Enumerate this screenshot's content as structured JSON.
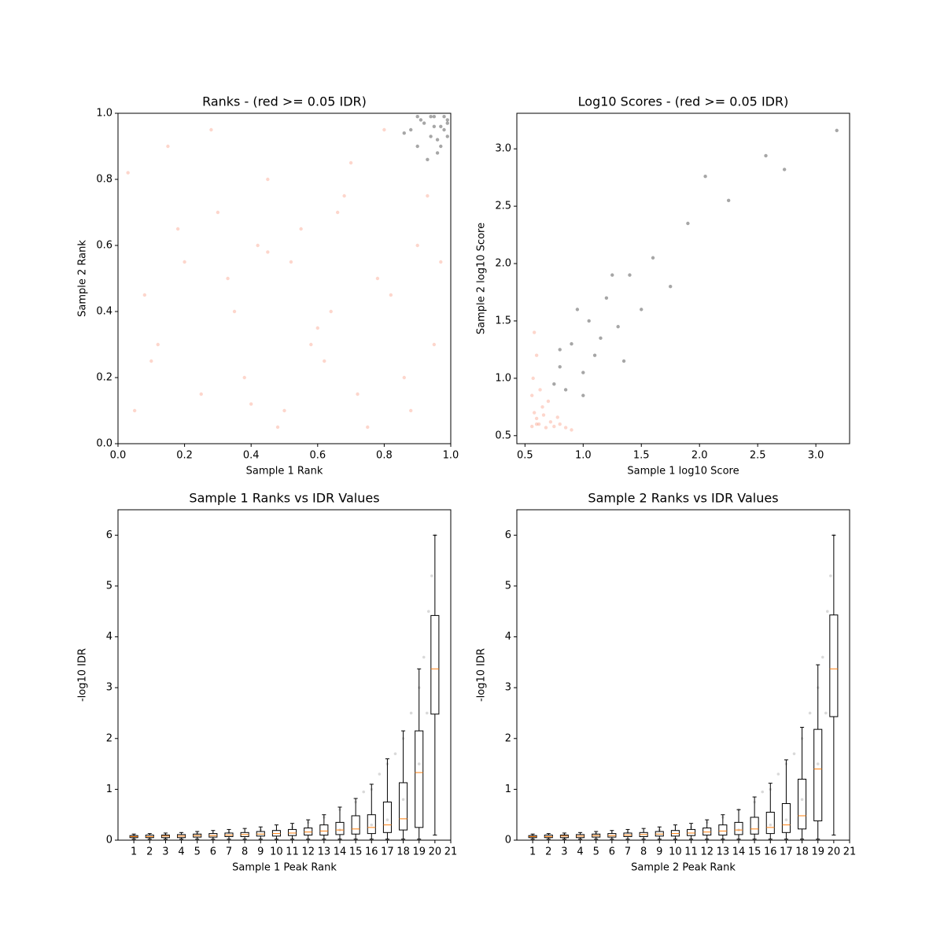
{
  "chart_data": [
    {
      "type": "scatter",
      "title": "Ranks - (red >= 0.05 IDR)",
      "x_label": "Sample 1 Rank",
      "y_label": "Sample 2 Rank",
      "xlim": [
        0,
        1
      ],
      "ylim": [
        0,
        1
      ],
      "xticks": [
        {
          "value": 0,
          "label": "0.0"
        },
        0.2,
        0.4,
        0.6,
        0.8,
        {
          "value": 1,
          "label": "1.0"
        }
      ],
      "yticks": [
        {
          "value": 0,
          "label": "0.0"
        },
        0.2,
        0.4,
        0.6,
        0.8,
        {
          "value": 1,
          "label": "1.0"
        }
      ],
      "series": [
        {
          "color": "#fa8a6e",
          "x": [
            0.05,
            0.12,
            0.2,
            0.3,
            0.38,
            0.45,
            0.5,
            0.6,
            0.68,
            0.75,
            0.82,
            0.9,
            0.95,
            0.03,
            0.15,
            0.25,
            0.35,
            0.42,
            0.48,
            0.55,
            0.62,
            0.7,
            0.78,
            0.86,
            0.93,
            0.08,
            0.18,
            0.28,
            0.4,
            0.52,
            0.58,
            0.66,
            0.72,
            0.8,
            0.88,
            0.1,
            0.33,
            0.45,
            0.64,
            0.97
          ],
          "y": [
            0.1,
            0.3,
            0.55,
            0.7,
            0.2,
            0.58,
            0.1,
            0.35,
            0.75,
            0.05,
            0.45,
            0.6,
            0.3,
            0.82,
            0.9,
            0.15,
            0.4,
            0.6,
            0.05,
            0.65,
            0.25,
            0.85,
            0.5,
            0.2,
            0.75,
            0.45,
            0.65,
            0.95,
            0.12,
            0.55,
            0.3,
            0.7,
            0.15,
            0.95,
            0.1,
            0.25,
            0.5,
            0.8,
            0.4,
            0.55
          ]
        },
        {
          "color": "#000000",
          "x": [
            0.88,
            0.9,
            0.92,
            0.94,
            0.95,
            0.96,
            0.97,
            0.98,
            0.99,
            0.93,
            0.91,
            0.96,
            0.98,
            0.86,
            0.97,
            0.99,
            0.95,
            0.9,
            0.94,
            0.99
          ],
          "y": [
            0.95,
            0.9,
            0.97,
            0.93,
            0.99,
            0.88,
            0.96,
            0.99,
            0.98,
            0.86,
            0.98,
            0.92,
            0.95,
            0.94,
            0.9,
            0.97,
            0.96,
            0.99,
            0.99,
            0.93
          ]
        }
      ]
    },
    {
      "type": "scatter",
      "title": "Log10 Scores - (red >= 0.05 IDR)",
      "x_label": "Sample 1 log10 Score",
      "y_label": "Sample 2 log10 Score",
      "xlim": [
        0.43,
        3.29
      ],
      "ylim": [
        0.43,
        3.31
      ],
      "xticks": [
        0.5,
        {
          "value": 1,
          "label": "1.0"
        },
        1.5,
        {
          "value": 2,
          "label": "2.0"
        },
        2.5,
        {
          "value": 3,
          "label": "3.0"
        }
      ],
      "yticks": [
        0.5,
        {
          "value": 1,
          "label": "1.0"
        },
        1.5,
        {
          "value": 2,
          "label": "2.0"
        },
        2.5,
        {
          "value": 3,
          "label": "3.0"
        }
      ],
      "series": [
        {
          "color": "#fa8a6e",
          "x": [
            0.56,
            0.58,
            0.6,
            0.62,
            0.65,
            0.68,
            0.7,
            0.72,
            0.75,
            0.78,
            0.8,
            0.85,
            0.57,
            0.6,
            0.63,
            0.66,
            0.58,
            0.56,
            0.6,
            0.9
          ],
          "y": [
            0.58,
            0.7,
            0.65,
            0.6,
            0.75,
            0.57,
            0.8,
            0.62,
            0.58,
            0.66,
            0.6,
            0.57,
            1.0,
            1.2,
            0.9,
            0.68,
            1.4,
            0.85,
            0.6,
            0.55
          ]
        },
        {
          "color": "#000000",
          "x": [
            0.75,
            0.8,
            0.85,
            0.9,
            1.0,
            1.05,
            1.1,
            1.2,
            1.3,
            1.4,
            1.5,
            1.6,
            1.75,
            1.9,
            2.05,
            2.25,
            2.57,
            2.73,
            3.18,
            0.95,
            1.15,
            1.35,
            0.8,
            1.0,
            1.25
          ],
          "y": [
            0.95,
            1.1,
            0.9,
            1.3,
            1.05,
            1.5,
            1.2,
            1.7,
            1.45,
            1.9,
            1.6,
            2.05,
            1.8,
            2.35,
            2.76,
            2.55,
            2.94,
            2.82,
            3.16,
            1.6,
            1.35,
            1.15,
            1.25,
            0.85,
            1.9
          ]
        }
      ]
    },
    {
      "type": "box",
      "title": "Sample 1 Ranks vs IDR Values",
      "x_label": "Sample 1 Peak Rank",
      "y_label": "-log10 IDR",
      "xlim": [
        0,
        21
      ],
      "ylim": [
        0,
        6.5
      ],
      "xticks": [
        1,
        2,
        3,
        4,
        5,
        6,
        7,
        8,
        9,
        10,
        11,
        12,
        13,
        14,
        15,
        16,
        17,
        18,
        19,
        20,
        21
      ],
      "yticks": [
        0,
        1,
        2,
        3,
        4,
        5,
        6
      ],
      "box_color": "#000000",
      "median_color": "#ff7f0e",
      "positions": [
        1,
        2,
        3,
        4,
        5,
        6,
        7,
        8,
        9,
        10,
        11,
        12,
        13,
        14,
        15,
        16,
        17,
        18,
        19,
        20
      ],
      "whislo": [
        0.02,
        0.02,
        0.02,
        0.02,
        0.02,
        0.02,
        0.02,
        0.02,
        0.02,
        0.02,
        0.02,
        0.02,
        0.02,
        0.02,
        0.02,
        0.02,
        0.02,
        0.02,
        0.02,
        0.1
      ],
      "q1": [
        0.05,
        0.05,
        0.05,
        0.05,
        0.06,
        0.06,
        0.07,
        0.07,
        0.08,
        0.08,
        0.09,
        0.1,
        0.1,
        0.11,
        0.12,
        0.13,
        0.15,
        0.2,
        0.25,
        2.48
      ],
      "median": [
        0.07,
        0.07,
        0.08,
        0.08,
        0.09,
        0.09,
        0.1,
        0.11,
        0.12,
        0.13,
        0.14,
        0.16,
        0.18,
        0.2,
        0.22,
        0.25,
        0.3,
        0.42,
        1.33,
        3.37
      ],
      "q3": [
        0.09,
        0.1,
        0.1,
        0.11,
        0.12,
        0.13,
        0.14,
        0.15,
        0.17,
        0.19,
        0.21,
        0.24,
        0.3,
        0.35,
        0.48,
        0.5,
        0.75,
        1.13,
        2.15,
        4.42
      ],
      "whishi": [
        0.12,
        0.13,
        0.14,
        0.15,
        0.17,
        0.19,
        0.21,
        0.23,
        0.26,
        0.3,
        0.33,
        0.4,
        0.5,
        0.65,
        0.82,
        1.1,
        1.6,
        2.15,
        3.37,
        6.0
      ],
      "series": [
        {
          "color": "#000000",
          "x": [
            1,
            3,
            5,
            7,
            9,
            11,
            12,
            13,
            14,
            15,
            15.5,
            16,
            16.5,
            17,
            17.5,
            18,
            18.5,
            19,
            19.3,
            19.6,
            19.8,
            20,
            17,
            18,
            19,
            19.5,
            14,
            16
          ],
          "y": [
            0.08,
            0.1,
            0.12,
            0.15,
            0.2,
            0.25,
            0.35,
            0.45,
            0.6,
            0.75,
            0.95,
            1.0,
            1.3,
            1.5,
            1.7,
            2.0,
            2.5,
            3.0,
            3.6,
            4.5,
            5.2,
            6.0,
            0.4,
            0.8,
            1.5,
            2.5,
            0.2,
            0.3
          ]
        }
      ]
    },
    {
      "type": "box",
      "title": "Sample 2 Ranks vs IDR Values",
      "x_label": "Sample 2 Peak Rank",
      "y_label": "-log10 IDR",
      "xlim": [
        0,
        21
      ],
      "ylim": [
        0,
        6.5
      ],
      "xticks": [
        1,
        2,
        3,
        4,
        5,
        6,
        7,
        8,
        9,
        10,
        11,
        12,
        13,
        14,
        15,
        16,
        17,
        18,
        19,
        20,
        21
      ],
      "yticks": [
        0,
        1,
        2,
        3,
        4,
        5,
        6
      ],
      "box_color": "#000000",
      "median_color": "#ff7f0e",
      "positions": [
        1,
        2,
        3,
        4,
        5,
        6,
        7,
        8,
        9,
        10,
        11,
        12,
        13,
        14,
        15,
        16,
        17,
        18,
        19,
        20
      ],
      "whislo": [
        0.02,
        0.02,
        0.02,
        0.02,
        0.02,
        0.02,
        0.02,
        0.02,
        0.02,
        0.02,
        0.02,
        0.02,
        0.02,
        0.02,
        0.02,
        0.02,
        0.02,
        0.02,
        0.02,
        0.1
      ],
      "q1": [
        0.05,
        0.05,
        0.05,
        0.05,
        0.06,
        0.06,
        0.07,
        0.07,
        0.08,
        0.08,
        0.09,
        0.1,
        0.1,
        0.11,
        0.12,
        0.13,
        0.15,
        0.22,
        0.38,
        2.43
      ],
      "median": [
        0.07,
        0.07,
        0.08,
        0.08,
        0.09,
        0.09,
        0.1,
        0.11,
        0.12,
        0.13,
        0.14,
        0.16,
        0.18,
        0.2,
        0.22,
        0.25,
        0.3,
        0.48,
        1.4,
        3.37
      ],
      "q3": [
        0.09,
        0.1,
        0.1,
        0.11,
        0.12,
        0.13,
        0.14,
        0.15,
        0.17,
        0.19,
        0.21,
        0.24,
        0.3,
        0.35,
        0.45,
        0.55,
        0.72,
        1.2,
        2.18,
        4.43
      ],
      "whishi": [
        0.12,
        0.13,
        0.14,
        0.15,
        0.17,
        0.19,
        0.21,
        0.23,
        0.26,
        0.3,
        0.33,
        0.4,
        0.5,
        0.6,
        0.85,
        1.12,
        1.58,
        2.22,
        3.45,
        6.0
      ],
      "series": [
        {
          "color": "#000000",
          "x": [
            1,
            3,
            5,
            7,
            9,
            11,
            12,
            13,
            14,
            15,
            15.5,
            16,
            16.5,
            17,
            17.5,
            18,
            18.5,
            19,
            19.3,
            19.6,
            19.8,
            20,
            17,
            18,
            19,
            19.5,
            14,
            16
          ],
          "y": [
            0.08,
            0.1,
            0.12,
            0.15,
            0.2,
            0.25,
            0.35,
            0.45,
            0.6,
            0.75,
            0.95,
            1.0,
            1.3,
            1.5,
            1.7,
            2.0,
            2.5,
            3.0,
            3.6,
            4.5,
            5.2,
            6.0,
            0.4,
            0.8,
            1.5,
            2.5,
            0.2,
            0.3
          ]
        }
      ]
    }
  ]
}
